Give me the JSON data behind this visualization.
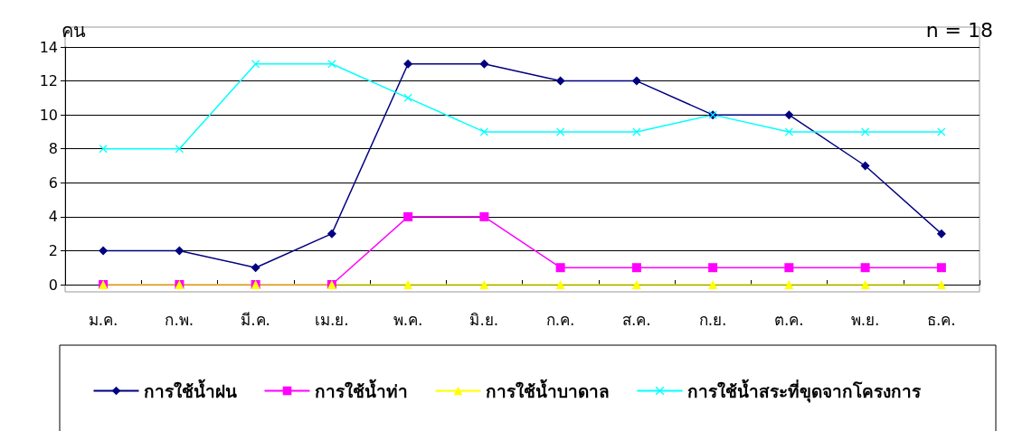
{
  "chart_data": {
    "type": "line",
    "ylabel": "คน",
    "annotations": [
      "n = 18"
    ],
    "categories": [
      "ม.ค.",
      "ก.พ.",
      "มี.ค.",
      "เม.ย.",
      "พ.ค.",
      "มิ.ย.",
      "ก.ค.",
      "ส.ค.",
      "ก.ย.",
      "ต.ค.",
      "พ.ย.",
      "ธ.ค."
    ],
    "series": [
      {
        "name": "การใช้น้ำฝน",
        "color": "#000080",
        "marker": "diamond",
        "values": [
          2,
          2,
          1,
          3,
          13,
          13,
          12,
          12,
          10,
          10,
          7,
          3
        ]
      },
      {
        "name": "การใช้น้ำท่า",
        "color": "#ff00ff",
        "marker": "square",
        "values": [
          0,
          0,
          0,
          0,
          4,
          4,
          1,
          1,
          1,
          1,
          1,
          1
        ]
      },
      {
        "name": "การใช้น้ำบาดาล",
        "color": "#ffff00",
        "marker": "triangle",
        "values": [
          0,
          0,
          0,
          0,
          0,
          0,
          0,
          0,
          0,
          0,
          0,
          0
        ]
      },
      {
        "name": "การใช้น้ำสระที่ขุดจากโครงการ",
        "color": "#00ffff",
        "marker": "cross",
        "values": [
          8,
          8,
          13,
          13,
          11,
          9,
          9,
          9,
          10,
          9,
          9,
          9
        ]
      }
    ],
    "ylim": [
      0,
      14
    ],
    "yticks": [
      0,
      2,
      4,
      6,
      8,
      10,
      12,
      14
    ],
    "grid": "y",
    "legend": "bottom",
    "line_style": "solid"
  }
}
